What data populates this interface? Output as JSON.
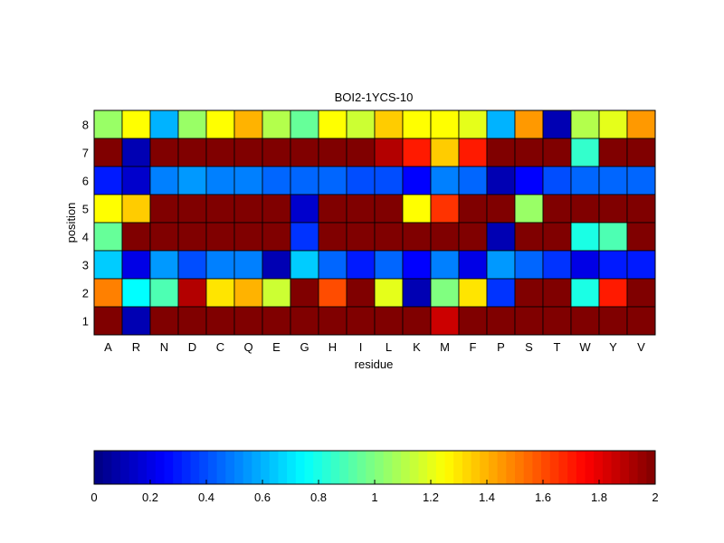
{
  "chart_data": {
    "type": "heatmap",
    "title": "BOI2-1YCS-10",
    "xlabel": "residue",
    "ylabel": "position",
    "x_categories": [
      "A",
      "R",
      "N",
      "D",
      "C",
      "Q",
      "E",
      "G",
      "H",
      "I",
      "L",
      "K",
      "M",
      "F",
      "P",
      "S",
      "T",
      "W",
      "Y",
      "V"
    ],
    "y_categories": [
      "1",
      "2",
      "3",
      "4",
      "5",
      "6",
      "7",
      "8"
    ],
    "rows": [
      {
        "position": "8",
        "values": [
          1.05,
          1.25,
          0.6,
          1.05,
          1.25,
          1.4,
          1.1,
          0.95,
          1.25,
          1.15,
          1.35,
          1.25,
          1.25,
          1.2,
          0.6,
          1.45,
          0.1,
          1.1,
          1.2,
          1.45
        ]
      },
      {
        "position": "7",
        "values": [
          2.0,
          0.1,
          2.0,
          2.0,
          2.0,
          2.0,
          2.0,
          2.0,
          2.0,
          2.0,
          1.9,
          1.7,
          1.35,
          1.7,
          2.0,
          2.0,
          2.0,
          0.85,
          2.0,
          2.0
        ]
      },
      {
        "position": "6",
        "values": [
          0.3,
          0.15,
          0.5,
          0.55,
          0.5,
          0.5,
          0.45,
          0.45,
          0.45,
          0.4,
          0.4,
          0.25,
          0.5,
          0.45,
          0.1,
          0.25,
          0.4,
          0.45,
          0.45,
          0.45
        ]
      },
      {
        "position": "5",
        "values": [
          1.25,
          1.35,
          2.0,
          2.0,
          2.0,
          2.0,
          2.0,
          0.15,
          2.0,
          2.0,
          2.0,
          1.25,
          1.65,
          2.0,
          2.0,
          1.05,
          2.0,
          2.0,
          2.0,
          2.0
        ]
      },
      {
        "position": "4",
        "values": [
          0.95,
          2.0,
          2.0,
          2.0,
          2.0,
          2.0,
          2.0,
          0.35,
          2.0,
          2.0,
          2.0,
          2.0,
          2.0,
          2.0,
          0.1,
          2.0,
          2.0,
          0.8,
          0.9,
          2.0
        ]
      },
      {
        "position": "3",
        "values": [
          0.65,
          0.2,
          0.55,
          0.4,
          0.5,
          0.5,
          0.1,
          0.65,
          0.45,
          0.3,
          0.45,
          0.25,
          0.5,
          0.2,
          0.55,
          0.45,
          0.35,
          0.2,
          0.3,
          0.3
        ]
      },
      {
        "position": "2",
        "values": [
          1.5,
          0.75,
          0.9,
          1.9,
          1.3,
          1.4,
          1.15,
          2.0,
          1.6,
          2.0,
          1.2,
          0.1,
          1.0,
          1.3,
          0.35,
          2.0,
          2.0,
          0.8,
          1.7,
          2.0
        ]
      },
      {
        "position": "1",
        "values": [
          2.0,
          0.1,
          2.0,
          2.0,
          2.0,
          2.0,
          2.0,
          2.0,
          2.0,
          2.0,
          2.0,
          2.0,
          1.85,
          2.0,
          2.0,
          2.0,
          2.0,
          2.0,
          2.0,
          2.0
        ]
      }
    ],
    "colormap": "jet",
    "clim": [
      0,
      2
    ],
    "colorbar": {
      "placement": "bottom",
      "ticks": [
        "0",
        "0.2",
        "0.4",
        "0.6",
        "0.8",
        "1",
        "1.2",
        "1.4",
        "1.6",
        "1.8",
        "2"
      ]
    },
    "grid": false
  }
}
